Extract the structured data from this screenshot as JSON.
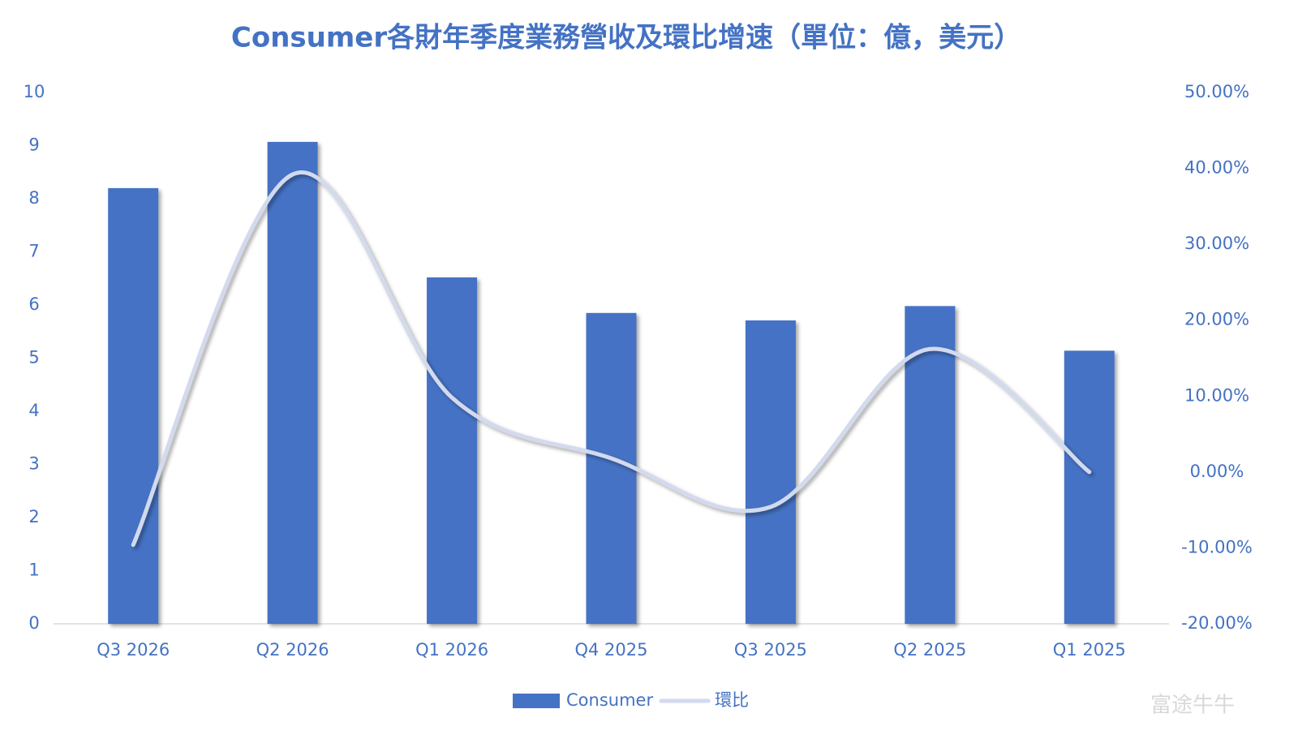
{
  "chart_data": {
    "type": "bar-line",
    "title": "Consumer各財年季度業務營收及環比增速（單位：億，美元）",
    "categories": [
      "Q3 2026",
      "Q2 2026",
      "Q1 2026",
      "Q4 2025",
      "Q3 2025",
      "Q2 2025",
      "Q1 2025"
    ],
    "series": [
      {
        "name": "Consumer",
        "type": "bar",
        "color": "#4472c4",
        "values": [
          8.2,
          9.07,
          6.52,
          5.85,
          5.71,
          5.98,
          5.14
        ]
      },
      {
        "name": "環比",
        "type": "line",
        "axis": "y2",
        "color": "#d3daee",
        "values": [
          -9.6,
          39.2,
          9.8,
          1.8,
          -4.6,
          16.2,
          0
        ]
      }
    ],
    "ylim": [
      0,
      10
    ],
    "yticks": [
      0,
      1,
      2,
      3,
      4,
      5,
      6,
      7,
      8,
      9,
      10
    ],
    "y2lim": [
      -20,
      50
    ],
    "y2ticks": [
      {
        "value": -20,
        "label": "-20.00%"
      },
      {
        "value": -10,
        "label": "-10.00%"
      },
      {
        "value": 0,
        "label": "0.00%"
      },
      {
        "value": 10,
        "label": "10.00%"
      },
      {
        "value": 20,
        "label": "20.00%"
      },
      {
        "value": 30,
        "label": "30.00%"
      },
      {
        "value": 40,
        "label": "40.00%"
      },
      {
        "value": 50,
        "label": "50.00%"
      }
    ],
    "legend": "bottom",
    "watermark": "富途牛牛"
  }
}
